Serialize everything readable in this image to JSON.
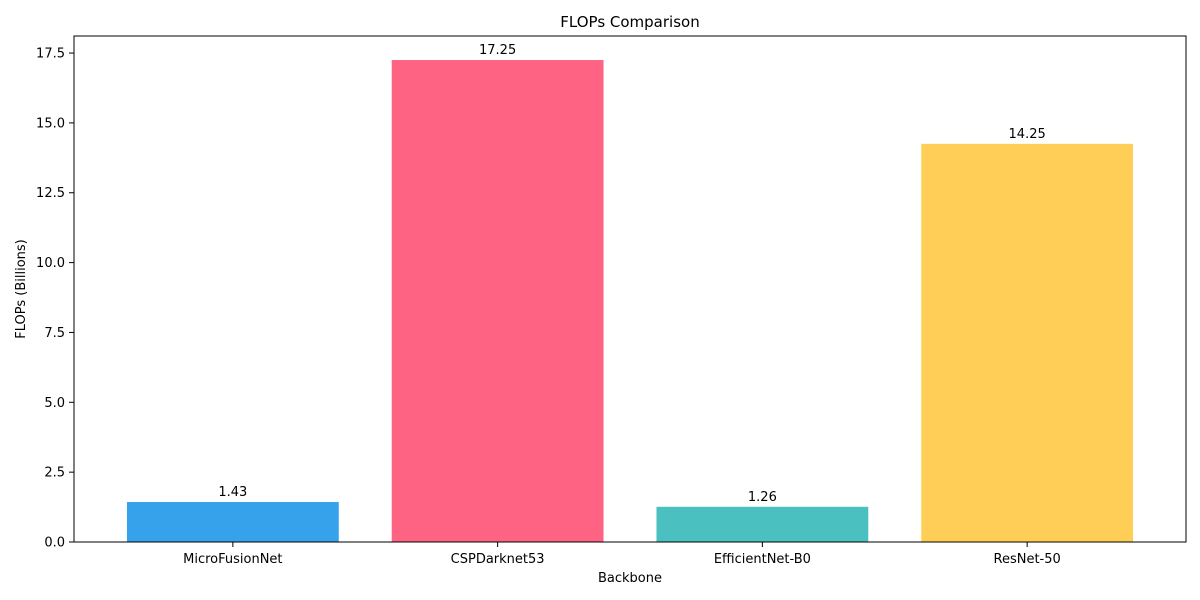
{
  "chart_data": {
    "type": "bar",
    "title": "FLOPs Comparison",
    "xlabel": "Backbone",
    "ylabel": "FLOPs (Billions)",
    "categories": [
      "MicroFusionNet",
      "CSPDarknet53",
      "EfficientNet-B0",
      "ResNet-50"
    ],
    "values": [
      1.43,
      17.25,
      1.26,
      14.25
    ],
    "value_labels": [
      "1.43",
      "17.25",
      "1.26",
      "14.25"
    ],
    "colors": [
      "#36a2eb",
      "#ff6384",
      "#4bc0c0",
      "#ffce56"
    ],
    "ylim": [
      0,
      18.11
    ],
    "yticks": [
      0.0,
      2.5,
      5.0,
      7.5,
      10.0,
      12.5,
      15.0,
      17.5
    ],
    "ytick_labels": [
      "0.0",
      "2.5",
      "5.0",
      "7.5",
      "10.0",
      "12.5",
      "15.0",
      "17.5"
    ],
    "grid": false,
    "legend": "none"
  }
}
